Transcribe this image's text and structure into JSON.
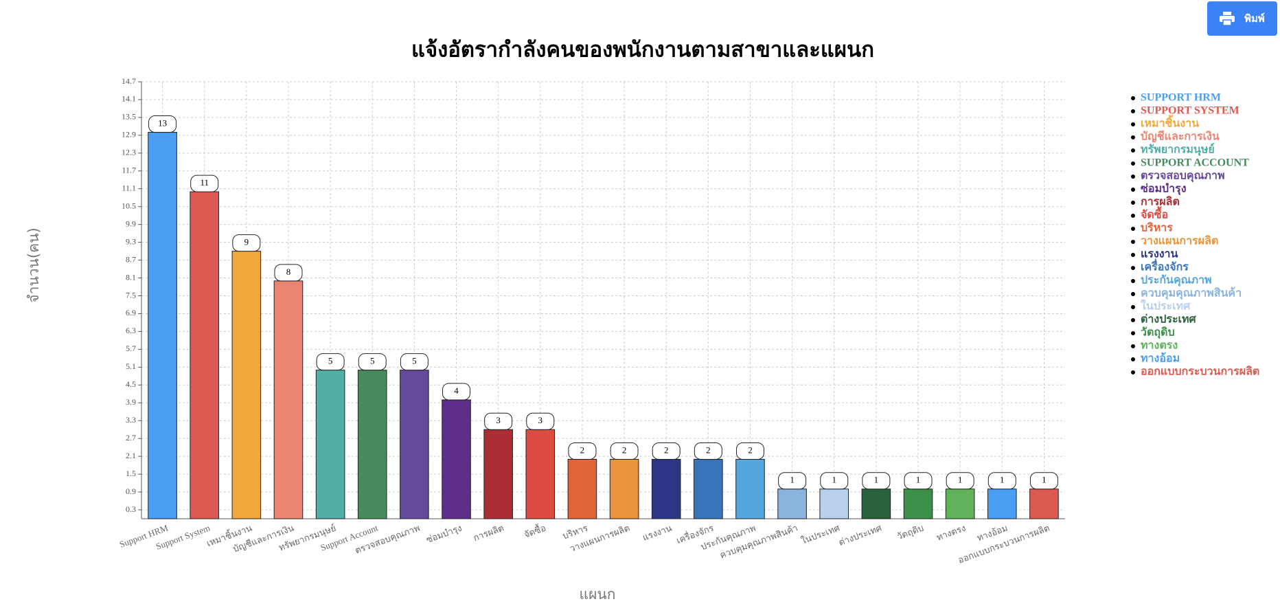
{
  "print_button": "พิมพ์",
  "chart_data": {
    "type": "bar",
    "title": "แจ้งอัตรากำลังคนของพนักงานตามสาขาและแผนก",
    "x_label": "แผนก",
    "y_label": "จำนวน(คน)",
    "categories": [
      "Support HRM",
      "Support System",
      "เหมาชิ้นงาน",
      "บัญชีและการเงิน",
      "ทรัพยากรมนุษย์",
      "Support Account",
      "ตรวจสอบคุณภาพ",
      "ซ่อมบำรุง",
      "การผลิต",
      "จัดซื้อ",
      "บริหาร",
      "วางแผนการผลิต",
      "แรงงาน",
      "เครื่องจักร",
      "ประกันคุณภาพ",
      "ควบคุมคุณภาพสินค้า",
      "ในประเทศ",
      "ต่างประเทศ",
      "วัตถุดิบ",
      "ทางตรง",
      "ทางอ้อม",
      "ออกแบบกระบวนการผลิต"
    ],
    "values": [
      13,
      11,
      9,
      8,
      5,
      5,
      5,
      4,
      3,
      3,
      2,
      2,
      2,
      2,
      2,
      1,
      1,
      1,
      1,
      1,
      1,
      1
    ],
    "colors": [
      "#4a9ff5",
      "#dc5a52",
      "#f0a83a",
      "#ea8574",
      "#52aea7",
      "#478a5b",
      "#634a9a",
      "#5e2d8a",
      "#ab2d35",
      "#dd4c40",
      "#e0643a",
      "#e8953e",
      "#2d3686",
      "#3875b8",
      "#55a6dc",
      "#8ab3de",
      "#b8d0ec",
      "#29623a",
      "#3e8f4a",
      "#60b35a",
      "#4a9ff5",
      "#dc5a52"
    ],
    "legend": [
      "SUPPORT HRM",
      "SUPPORT SYSTEM",
      "เหมาชิ้นงาน",
      "บัญชีและการเงิน",
      "ทรัพยากรมนุษย์",
      "SUPPORT ACCOUNT",
      "ตรวจสอบคุณภาพ",
      "ซ่อมบำรุง",
      "การผลิต",
      "จัดซื้อ",
      "บริหาร",
      "วางแผนการผลิต",
      "แรงงาน",
      "เครื่องจักร",
      "ประกันคุณภาพ",
      "ควบคุมคุณภาพสินค้า",
      "ในประเทศ",
      "ต่างประเทศ",
      "วัตถุดิบ",
      "ทางตรง",
      "ทางอ้อม",
      "ออกแบบกระบวนการผลิต"
    ],
    "ylim": [
      0,
      14.7
    ],
    "yticks": [
      0.3,
      0.9,
      1.5,
      2.1,
      2.7,
      3.3,
      3.9,
      4.5,
      5.1,
      5.7,
      6.3,
      6.9,
      7.5,
      8.1,
      8.7,
      9.3,
      9.9,
      10.5,
      11.1,
      11.7,
      12.3,
      12.9,
      13.5,
      14.1,
      14.7
    ],
    "grid": true
  }
}
